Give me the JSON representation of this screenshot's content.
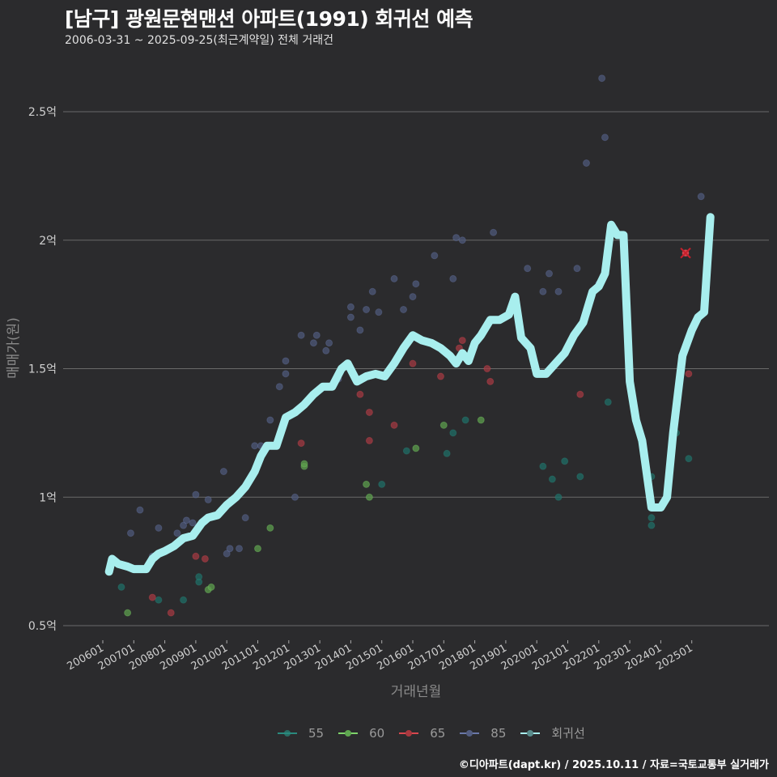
{
  "header": {
    "title": "[남구] 광원문현맨션 아파트(1991) 회귀선 예측",
    "subtitle": "2006-03-31 ~ 2025-09-25(최근계약일) 전체 거래건"
  },
  "axes": {
    "y_title": "매매가(원)",
    "x_title": "거래년월",
    "y_ticks": [
      "0.5억",
      "1억",
      "1.5억",
      "2억",
      "2.5억"
    ],
    "x_ticks": [
      "200601",
      "200701",
      "200801",
      "200901",
      "201001",
      "201101",
      "201201",
      "201301",
      "201401",
      "201501",
      "201601",
      "201701",
      "201801",
      "201901",
      "202001",
      "202101",
      "202201",
      "202301",
      "202401",
      "202501"
    ]
  },
  "legend": {
    "items": [
      {
        "label": "55",
        "color": "#2a8a7e"
      },
      {
        "label": "60",
        "color": "#7ed36b"
      },
      {
        "label": "65",
        "color": "#d9474f"
      },
      {
        "label": "85",
        "color": "#6a78a8"
      },
      {
        "label": "회귀선",
        "color": "#a8eeee"
      }
    ]
  },
  "footer": {
    "credit": "©디아파트(dapt.kr) / 2025.10.11 / 자료=국토교통부 실거래가"
  },
  "chart_data": {
    "type": "scatter",
    "title": "[남구] 광원문현맨션 아파트(1991) 회귀선 예측",
    "subtitle": "2006-03-31 ~ 2025-09-25(최근계약일) 전체 거래건",
    "xlabel": "거래년월",
    "ylabel": "매매가(원)",
    "ylim": [
      0.45,
      2.7
    ],
    "y_unit": "억",
    "grid": "horizontal",
    "legend_position": "bottom",
    "categories": [
      "200601",
      "200701",
      "200801",
      "200901",
      "201001",
      "201101",
      "201201",
      "201301",
      "201401",
      "201501",
      "201601",
      "201701",
      "201801",
      "201901",
      "202001",
      "202101",
      "202201",
      "202301",
      "202401",
      "202501"
    ],
    "series": [
      {
        "name": "55",
        "color": "#2a8a7e",
        "points": [
          [
            2006.6,
            0.65
          ],
          [
            2007.8,
            0.6
          ],
          [
            2008.6,
            0.6
          ],
          [
            2009.1,
            0.67
          ],
          [
            2009.1,
            0.69
          ],
          [
            2015.0,
            1.05
          ],
          [
            2015.8,
            1.18
          ],
          [
            2017.1,
            1.17
          ],
          [
            2017.3,
            1.25
          ],
          [
            2017.7,
            1.3
          ],
          [
            2020.9,
            1.14
          ],
          [
            2020.5,
            1.07
          ],
          [
            2020.7,
            1.0
          ],
          [
            2021.4,
            1.08
          ],
          [
            2020.2,
            1.12
          ],
          [
            2022.3,
            1.37
          ],
          [
            2023.7,
            1.08
          ],
          [
            2023.7,
            0.92
          ],
          [
            2023.7,
            0.89
          ],
          [
            2024.5,
            1.25
          ],
          [
            2024.9,
            1.15
          ]
        ]
      },
      {
        "name": "60",
        "color": "#7ed36b",
        "points": [
          [
            2006.8,
            0.55
          ],
          [
            2009.4,
            0.64
          ],
          [
            2009.5,
            0.65
          ],
          [
            2011.0,
            0.8
          ],
          [
            2011.4,
            0.88
          ],
          [
            2012.5,
            1.12
          ],
          [
            2012.5,
            1.13
          ],
          [
            2014.6,
            1.0
          ],
          [
            2014.5,
            1.05
          ],
          [
            2016.1,
            1.19
          ],
          [
            2017.0,
            1.28
          ],
          [
            2018.2,
            1.3
          ]
        ]
      },
      {
        "name": "65",
        "color": "#d9474f",
        "points": [
          [
            2007.6,
            0.61
          ],
          [
            2008.2,
            0.55
          ],
          [
            2009.0,
            0.77
          ],
          [
            2009.3,
            0.76
          ],
          [
            2012.4,
            1.21
          ],
          [
            2014.3,
            1.4
          ],
          [
            2014.6,
            1.33
          ],
          [
            2014.6,
            1.22
          ],
          [
            2015.4,
            1.28
          ],
          [
            2016.0,
            1.52
          ],
          [
            2016.9,
            1.47
          ],
          [
            2017.5,
            1.58
          ],
          [
            2017.6,
            1.61
          ],
          [
            2018.4,
            1.5
          ],
          [
            2018.5,
            1.45
          ],
          [
            2021.4,
            1.4
          ],
          [
            2024.8,
            1.95
          ],
          [
            2024.9,
            1.48
          ]
        ]
      },
      {
        "name": "85",
        "color": "#6a78a8",
        "points": [
          [
            2006.9,
            0.86
          ],
          [
            2007.2,
            0.95
          ],
          [
            2007.6,
            0.77
          ],
          [
            2007.8,
            0.88
          ],
          [
            2008.4,
            0.86
          ],
          [
            2008.6,
            0.89
          ],
          [
            2008.7,
            0.91
          ],
          [
            2008.9,
            0.9
          ],
          [
            2009.0,
            1.01
          ],
          [
            2009.4,
            0.99
          ],
          [
            2009.9,
            1.1
          ],
          [
            2010.0,
            0.78
          ],
          [
            2010.1,
            0.8
          ],
          [
            2010.4,
            0.8
          ],
          [
            2010.6,
            0.92
          ],
          [
            2010.9,
            1.2
          ],
          [
            2011.1,
            1.2
          ],
          [
            2011.4,
            1.3
          ],
          [
            2011.7,
            1.43
          ],
          [
            2011.9,
            1.48
          ],
          [
            2011.9,
            1.53
          ],
          [
            2012.2,
            1.0
          ],
          [
            2012.4,
            1.63
          ],
          [
            2012.8,
            1.6
          ],
          [
            2012.9,
            1.63
          ],
          [
            2013.2,
            1.57
          ],
          [
            2013.3,
            1.6
          ],
          [
            2013.6,
            1.46
          ],
          [
            2014.0,
            1.7
          ],
          [
            2014.0,
            1.74
          ],
          [
            2014.3,
            1.65
          ],
          [
            2014.5,
            1.73
          ],
          [
            2014.7,
            1.8
          ],
          [
            2014.9,
            1.72
          ],
          [
            2015.4,
            1.85
          ],
          [
            2015.7,
            1.73
          ],
          [
            2016.0,
            1.78
          ],
          [
            2016.1,
            1.83
          ],
          [
            2016.7,
            1.94
          ],
          [
            2017.3,
            1.85
          ],
          [
            2017.4,
            2.01
          ],
          [
            2017.6,
            2.0
          ],
          [
            2018.6,
            2.03
          ],
          [
            2019.7,
            1.89
          ],
          [
            2020.2,
            1.8
          ],
          [
            2020.4,
            1.87
          ],
          [
            2020.7,
            1.8
          ],
          [
            2021.3,
            1.89
          ],
          [
            2021.6,
            2.3
          ],
          [
            2022.1,
            2.63
          ],
          [
            2022.2,
            2.4
          ],
          [
            2022.0,
            1.83
          ],
          [
            2025.3,
            2.17
          ]
        ]
      },
      {
        "name": "회귀선",
        "color": "#a8eeee",
        "type": "line",
        "x": [
          2006.2,
          2006.3,
          2006.5,
          2006.8,
          2007.0,
          2007.4,
          2007.6,
          2007.8,
          2008.0,
          2008.3,
          2008.6,
          2008.9,
          2009.2,
          2009.4,
          2009.7,
          2010.0,
          2010.3,
          2010.6,
          2010.9,
          2011.1,
          2011.3,
          2011.6,
          2011.9,
          2012.2,
          2012.5,
          2012.8,
          2013.1,
          2013.4,
          2013.7,
          2013.9,
          2014.2,
          2014.5,
          2014.8,
          2015.1,
          2015.4,
          2015.7,
          2016.0,
          2016.3,
          2016.6,
          2016.9,
          2017.2,
          2017.4,
          2017.6,
          2017.8,
          2018.0,
          2018.2,
          2018.5,
          2018.8,
          2019.1,
          2019.3,
          2019.5,
          2019.8,
          2020.0,
          2020.3,
          2020.6,
          2020.9,
          2021.2,
          2021.5,
          2021.8,
          2022.0,
          2022.2,
          2022.4,
          2022.6,
          2022.8,
          2023.0,
          2023.2,
          2023.4,
          2023.7,
          2024.0,
          2024.2,
          2024.4,
          2024.7,
          2025.0,
          2025.2,
          2025.4,
          2025.6
        ],
        "values": [
          0.71,
          0.76,
          0.74,
          0.73,
          0.72,
          0.72,
          0.76,
          0.78,
          0.79,
          0.81,
          0.84,
          0.85,
          0.9,
          0.92,
          0.93,
          0.97,
          1.0,
          1.04,
          1.1,
          1.16,
          1.2,
          1.2,
          1.31,
          1.33,
          1.36,
          1.4,
          1.43,
          1.43,
          1.5,
          1.52,
          1.45,
          1.47,
          1.48,
          1.47,
          1.52,
          1.58,
          1.63,
          1.61,
          1.6,
          1.58,
          1.55,
          1.52,
          1.56,
          1.53,
          1.6,
          1.63,
          1.69,
          1.69,
          1.71,
          1.78,
          1.62,
          1.58,
          1.48,
          1.48,
          1.52,
          1.56,
          1.63,
          1.68,
          1.8,
          1.82,
          1.87,
          2.06,
          2.02,
          2.02,
          1.45,
          1.3,
          1.22,
          0.96,
          0.96,
          1.0,
          1.25,
          1.55,
          1.65,
          1.7,
          1.72,
          2.09
        ]
      }
    ]
  }
}
